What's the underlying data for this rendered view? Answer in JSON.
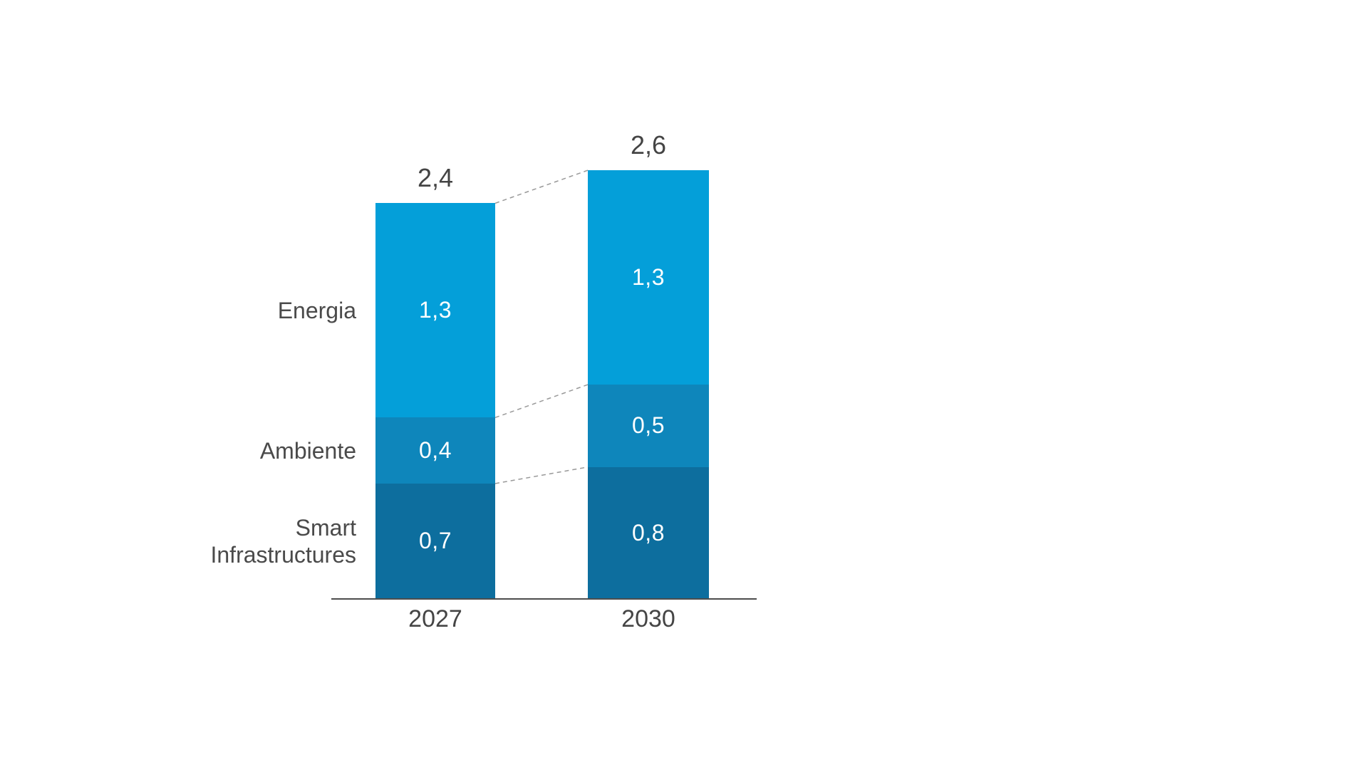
{
  "chart_data": {
    "type": "bar",
    "subtype": "stacked-column",
    "title": "",
    "xlabel": "",
    "ylabel": "",
    "grid": false,
    "legend_position": "left-row-labels",
    "decimal_separator": ",",
    "categories": [
      "2027",
      "2030"
    ],
    "series": [
      {
        "name": "Energia",
        "values": [
          1.3,
          1.3
        ],
        "color": "#049fd9"
      },
      {
        "name": "Ambiente",
        "values": [
          0.4,
          0.5
        ],
        "color": "#0e86bb"
      },
      {
        "name": "Smart Infrastructures",
        "values": [
          0.7,
          0.8
        ],
        "color": "#0d6e9e"
      }
    ],
    "totals": [
      2.4,
      2.6
    ],
    "total_labels": [
      "2,4",
      "2,6"
    ],
    "value_labels": [
      [
        "1,3",
        "0,4",
        "0,7"
      ],
      [
        "1,3",
        "0,5",
        "0,8"
      ]
    ],
    "connectors_between_bars": true
  },
  "labels": {
    "rows": [
      "Energia",
      "Ambiente",
      "Smart Infrastructures"
    ]
  },
  "colors": {
    "background": "#ffffff",
    "text": "#454545",
    "axis": "#4d4d4d",
    "connector": "#999999",
    "bar_value_text": "#ffffff"
  }
}
